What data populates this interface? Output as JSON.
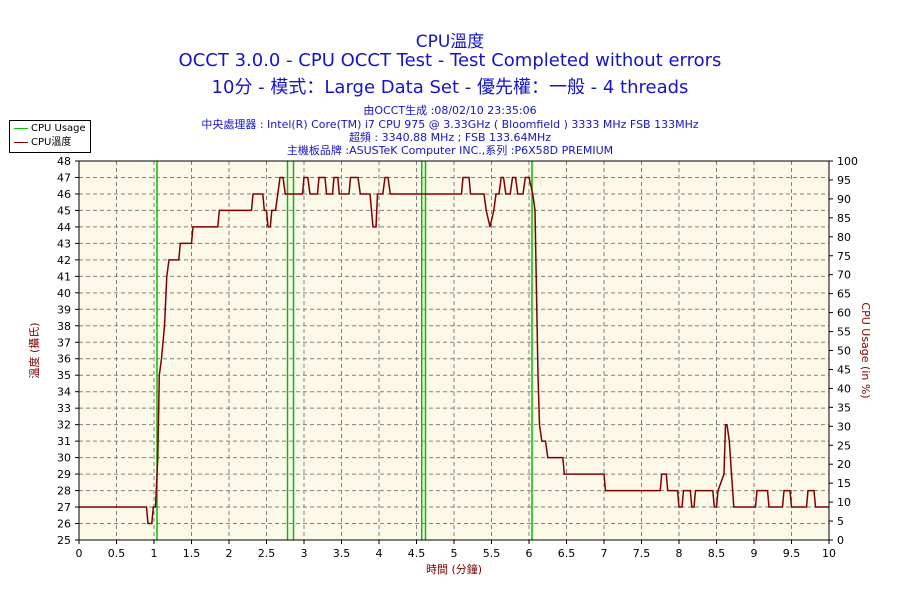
{
  "header": {
    "title": "CPU溫度",
    "line2": "OCCT 3.0.0 - CPU OCCT Test - Test Completed without errors",
    "line3": "10分 - 模式：Large Data Set - 優先權：一般 - 4 threads",
    "info1": "由OCCT生成 :08/02/10 23:35:06",
    "info2": "中央處理器 : Intel(R) Core(TM) i7 CPU 975 @ 3.33GHz ( Bloomfield ) 3333 MHz FSB 133MHz",
    "info3": "超頻 : 3340.88 MHz ; FSB 133.64MHz",
    "info4": "主機板品牌 :ASUSTeK Computer INC.,系列 :P6X58D PREMIUM"
  },
  "legend": {
    "cpu_usage": "CPU Usage",
    "cpu_temp": "CPU溫度"
  },
  "colors": {
    "temp": "#800000",
    "usage": "#00c000",
    "plot_bg": "#fcf9e8",
    "grid": "#808080",
    "title": "#1414c8"
  },
  "chart_data": {
    "type": "line",
    "xlabel": "時間 (分鐘)",
    "ylabel_left": "溫度 (攝氏)",
    "ylabel_right": "CPU Usage (in %)",
    "xlim": [
      0,
      10
    ],
    "ylim_left": [
      25,
      48
    ],
    "ylim_right": [
      0,
      100
    ],
    "x_ticks": [
      "0",
      "0.5",
      "1",
      "1.5",
      "2",
      "2.5",
      "3",
      "3.5",
      "4",
      "4.5",
      "5",
      "5.5",
      "6",
      "6.5",
      "7",
      "7.5",
      "8",
      "8.5",
      "9",
      "9.5",
      "10"
    ],
    "y_ticks_left": [
      "25",
      "26",
      "27",
      "28",
      "29",
      "30",
      "31",
      "32",
      "33",
      "34",
      "35",
      "36",
      "37",
      "38",
      "39",
      "40",
      "41",
      "42",
      "43",
      "44",
      "45",
      "46",
      "47",
      "48"
    ],
    "y_ticks_right": [
      "0",
      "5",
      "10",
      "15",
      "20",
      "25",
      "30",
      "35",
      "40",
      "45",
      "50",
      "55",
      "60",
      "65",
      "70",
      "75",
      "80",
      "85",
      "90",
      "95",
      "100"
    ],
    "grid": true,
    "legend_position": "top-left",
    "series": [
      {
        "name": "CPU溫度",
        "axis": "left",
        "points": [
          [
            0,
            27
          ],
          [
            0.9,
            27
          ],
          [
            0.92,
            26
          ],
          [
            0.97,
            26
          ],
          [
            0.99,
            27
          ],
          [
            1.02,
            27
          ],
          [
            1.05,
            30
          ],
          [
            1.07,
            35
          ],
          [
            1.1,
            36
          ],
          [
            1.12,
            37
          ],
          [
            1.14,
            38
          ],
          [
            1.17,
            41
          ],
          [
            1.2,
            42
          ],
          [
            1.33,
            42
          ],
          [
            1.35,
            43
          ],
          [
            1.5,
            43
          ],
          [
            1.52,
            44
          ],
          [
            1.85,
            44
          ],
          [
            1.87,
            45
          ],
          [
            2.3,
            45
          ],
          [
            2.32,
            46
          ],
          [
            2.45,
            46
          ],
          [
            2.47,
            45
          ],
          [
            2.5,
            45
          ],
          [
            2.52,
            44
          ],
          [
            2.55,
            44
          ],
          [
            2.57,
            45
          ],
          [
            2.62,
            45
          ],
          [
            2.65,
            46
          ],
          [
            2.68,
            47
          ],
          [
            2.72,
            47
          ],
          [
            2.75,
            46
          ],
          [
            2.98,
            46
          ],
          [
            3.0,
            47
          ],
          [
            3.05,
            47
          ],
          [
            3.08,
            46
          ],
          [
            3.18,
            46
          ],
          [
            3.2,
            47
          ],
          [
            3.28,
            47
          ],
          [
            3.3,
            46
          ],
          [
            3.38,
            46
          ],
          [
            3.4,
            47
          ],
          [
            3.45,
            47
          ],
          [
            3.47,
            46
          ],
          [
            3.6,
            46
          ],
          [
            3.62,
            47
          ],
          [
            3.72,
            47
          ],
          [
            3.75,
            46
          ],
          [
            3.88,
            46
          ],
          [
            3.92,
            44
          ],
          [
            3.96,
            44
          ],
          [
            3.98,
            46
          ],
          [
            4.05,
            46
          ],
          [
            4.08,
            47
          ],
          [
            4.12,
            47
          ],
          [
            4.15,
            46
          ],
          [
            5.1,
            46
          ],
          [
            5.12,
            47
          ],
          [
            5.2,
            47
          ],
          [
            5.22,
            46
          ],
          [
            5.4,
            46
          ],
          [
            5.43,
            45
          ],
          [
            5.48,
            44
          ],
          [
            5.53,
            45
          ],
          [
            5.56,
            46
          ],
          [
            5.6,
            46
          ],
          [
            5.63,
            47
          ],
          [
            5.66,
            47
          ],
          [
            5.69,
            46
          ],
          [
            5.75,
            46
          ],
          [
            5.78,
            47
          ],
          [
            5.82,
            47
          ],
          [
            5.85,
            46
          ],
          [
            5.92,
            46
          ],
          [
            5.95,
            47
          ],
          [
            6.0,
            47
          ],
          [
            6.05,
            46
          ],
          [
            6.08,
            45
          ],
          [
            6.1,
            40
          ],
          [
            6.12,
            35
          ],
          [
            6.14,
            32
          ],
          [
            6.17,
            31
          ],
          [
            6.22,
            31
          ],
          [
            6.25,
            30
          ],
          [
            6.45,
            30
          ],
          [
            6.47,
            29
          ],
          [
            7.0,
            29
          ],
          [
            7.02,
            28
          ],
          [
            7.75,
            28
          ],
          [
            7.77,
            29
          ],
          [
            7.83,
            29
          ],
          [
            7.85,
            28
          ],
          [
            7.98,
            28
          ],
          [
            8.0,
            27
          ],
          [
            8.04,
            27
          ],
          [
            8.06,
            28
          ],
          [
            8.15,
            28
          ],
          [
            8.17,
            27
          ],
          [
            8.2,
            27
          ],
          [
            8.22,
            28
          ],
          [
            8.45,
            28
          ],
          [
            8.47,
            27
          ],
          [
            8.5,
            27
          ],
          [
            8.52,
            28
          ],
          [
            8.6,
            29
          ],
          [
            8.62,
            32
          ],
          [
            8.64,
            32
          ],
          [
            8.67,
            31
          ],
          [
            8.7,
            29
          ],
          [
            8.73,
            27
          ],
          [
            9.02,
            27
          ],
          [
            9.04,
            28
          ],
          [
            9.18,
            28
          ],
          [
            9.2,
            27
          ],
          [
            9.38,
            27
          ],
          [
            9.4,
            28
          ],
          [
            9.48,
            28
          ],
          [
            9.5,
            27
          ],
          [
            9.7,
            27
          ],
          [
            9.72,
            28
          ],
          [
            9.8,
            28
          ],
          [
            9.82,
            27
          ],
          [
            10,
            27
          ]
        ]
      },
      {
        "name": "CPU Usage",
        "axis": "right",
        "spikes_x": [
          1.04,
          2.78,
          2.86,
          4.57,
          4.62,
          6.04
        ]
      }
    ]
  }
}
